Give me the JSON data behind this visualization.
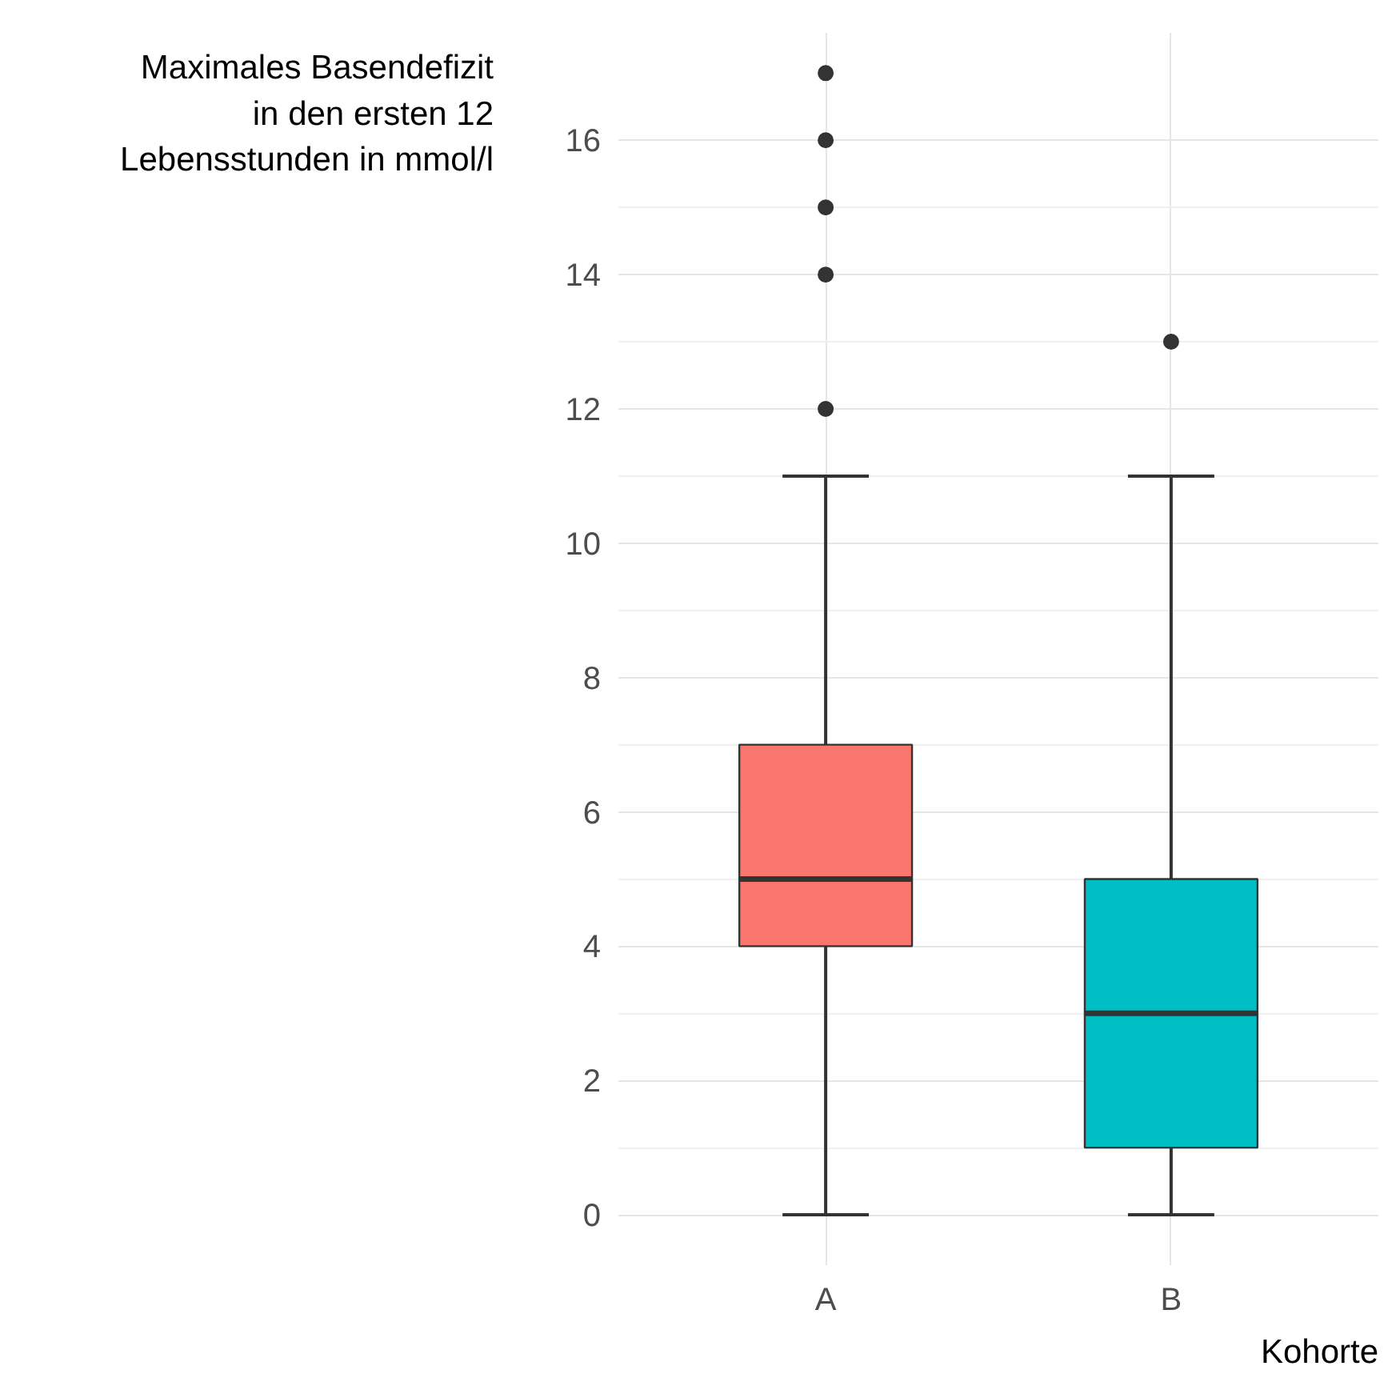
{
  "chart_data": {
    "type": "box",
    "ylabel": "Maximales Basendefizit\nin den ersten 12\nLebensstunden in mmol/l",
    "xlabel": "Kohorte",
    "categories": [
      "A",
      "B"
    ],
    "colors": [
      "#f8766d",
      "#00bfc4"
    ],
    "boxes": [
      {
        "low": 0,
        "q1": 4,
        "median": 5,
        "q3": 7,
        "high": 11,
        "outliers": [
          12,
          14,
          15,
          16,
          17
        ]
      },
      {
        "low": 0,
        "q1": 1,
        "median": 3,
        "q3": 5,
        "high": 11,
        "outliers": [
          13
        ]
      }
    ],
    "ylim": [
      -0.75,
      17.6
    ],
    "yticks": [
      0,
      2,
      4,
      6,
      8,
      10,
      12,
      14,
      16
    ],
    "grid": true
  }
}
